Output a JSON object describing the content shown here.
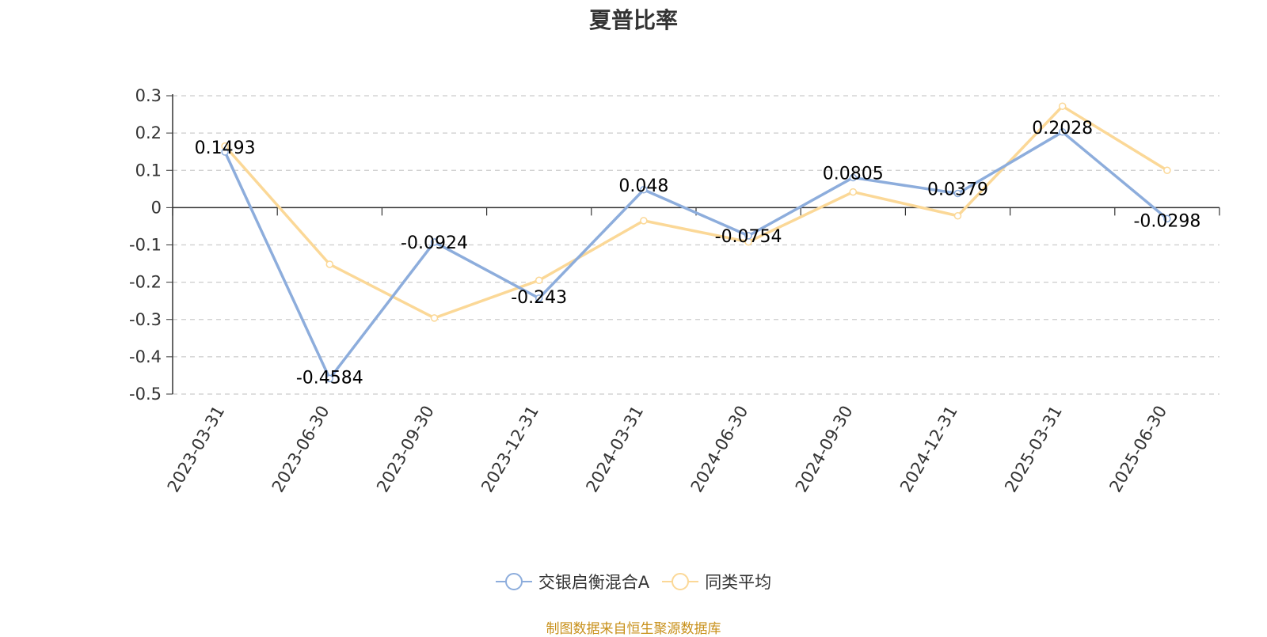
{
  "chart_data": {
    "type": "line",
    "title": "夏普比率",
    "categories": [
      "2023-03-31",
      "2023-06-30",
      "2023-09-30",
      "2023-12-31",
      "2024-03-31",
      "2024-06-30",
      "2024-09-30",
      "2024-12-31",
      "2025-03-31",
      "2025-06-30"
    ],
    "series": [
      {
        "name": "交银启衡混合A",
        "color": "#8daddc",
        "values": [
          0.1493,
          -0.4584,
          -0.0924,
          -0.243,
          0.048,
          -0.0754,
          0.0805,
          0.0379,
          0.2028,
          -0.0298
        ],
        "labels": [
          "0.1493",
          "-0.4584",
          "-0.0924",
          "-0.243",
          "0.048",
          "-0.0754",
          "0.0805",
          "0.0379",
          "0.2028",
          "-0.0298"
        ]
      },
      {
        "name": "同类平均",
        "color": "#fbd897",
        "values": [
          0.165,
          -0.152,
          -0.296,
          -0.195,
          -0.035,
          -0.092,
          0.042,
          -0.022,
          0.272,
          0.1
        ]
      }
    ],
    "yticks": [
      "0.3",
      "0.2",
      "0.1",
      "0",
      "-0.1",
      "-0.2",
      "-0.3",
      "-0.4",
      "-0.5"
    ],
    "ylim": [
      -0.5,
      0.3
    ],
    "grid": true,
    "legend_position": "bottom-center",
    "source_note": "制图数据来自恒生聚源数据库"
  }
}
